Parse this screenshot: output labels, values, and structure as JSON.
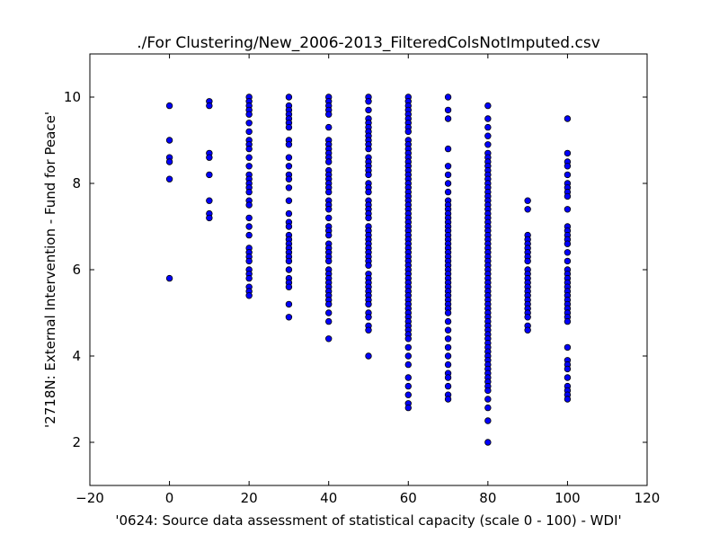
{
  "chart_data": {
    "type": "scatter",
    "title": "./For Clustering/New_2006-2013_FilteredColsNotImputed.csv",
    "xlabel": "'0624: Source data assessment of statistical capacity  (scale 0 - 100) - WDI'",
    "ylabel": "'2718N: External Intervention - Fund for Peace'",
    "xlim": [
      -20,
      120
    ],
    "ylim": [
      1,
      11
    ],
    "xticks": [
      -20,
      0,
      20,
      40,
      60,
      80,
      100,
      120
    ],
    "yticks": [
      2,
      4,
      6,
      8,
      10
    ],
    "grid": false,
    "marker_color": "#0000ff",
    "points_by_x": [
      {
        "x": 0,
        "y": [
          9.8,
          9.0,
          8.6,
          8.5,
          8.1,
          5.8
        ]
      },
      {
        "x": 10,
        "y": [
          9.9,
          9.8,
          8.7,
          8.6,
          8.2,
          7.6,
          7.3,
          7.2
        ]
      },
      {
        "x": 20,
        "y": [
          10.0,
          9.9,
          9.8,
          9.7,
          9.6,
          9.4,
          9.2,
          9.0,
          8.9,
          8.8,
          8.6,
          8.4,
          8.2,
          8.1,
          8.0,
          7.9,
          7.8,
          7.6,
          7.5,
          7.2,
          7.0,
          6.8,
          6.5,
          6.4,
          6.3,
          6.2,
          6.0,
          5.9,
          5.8,
          5.6,
          5.5,
          5.4
        ]
      },
      {
        "x": 30,
        "y": [
          10.0,
          9.8,
          9.7,
          9.6,
          9.5,
          9.4,
          9.3,
          9.0,
          8.9,
          8.6,
          8.4,
          8.2,
          8.1,
          7.9,
          7.6,
          7.3,
          7.1,
          7.0,
          6.8,
          6.7,
          6.6,
          6.5,
          6.4,
          6.3,
          6.2,
          6.0,
          5.8,
          5.7,
          5.6,
          5.2,
          4.9
        ]
      },
      {
        "x": 40,
        "y": [
          10.0,
          9.9,
          9.8,
          9.7,
          9.6,
          9.3,
          9.0,
          8.9,
          8.8,
          8.7,
          8.6,
          8.5,
          8.3,
          8.2,
          8.1,
          8.0,
          7.9,
          7.8,
          7.6,
          7.5,
          7.4,
          7.2,
          7.0,
          6.9,
          6.8,
          6.6,
          6.5,
          6.4,
          6.3,
          6.2,
          6.0,
          5.9,
          5.8,
          5.7,
          5.6,
          5.5,
          5.4,
          5.3,
          5.2,
          5.0,
          4.8,
          4.4
        ]
      },
      {
        "x": 50,
        "y": [
          10.0,
          9.9,
          9.7,
          9.5,
          9.4,
          9.3,
          9.2,
          9.1,
          9.0,
          8.9,
          8.8,
          8.6,
          8.5,
          8.4,
          8.3,
          8.2,
          8.0,
          7.9,
          7.8,
          7.6,
          7.5,
          7.4,
          7.3,
          7.2,
          7.0,
          6.9,
          6.8,
          6.7,
          6.6,
          6.5,
          6.4,
          6.3,
          6.2,
          6.1,
          5.9,
          5.8,
          5.7,
          5.6,
          5.5,
          5.4,
          5.3,
          5.2,
          5.0,
          4.9,
          4.7,
          4.6,
          4.0
        ]
      },
      {
        "x": 60,
        "y": [
          10.0,
          9.9,
          9.8,
          9.7,
          9.6,
          9.5,
          9.4,
          9.3,
          9.2,
          9.0,
          8.9,
          8.8,
          8.7,
          8.6,
          8.5,
          8.4,
          8.3,
          8.2,
          8.1,
          8.0,
          7.9,
          7.8,
          7.7,
          7.6,
          7.5,
          7.4,
          7.3,
          7.2,
          7.1,
          7.0,
          6.9,
          6.8,
          6.7,
          6.6,
          6.5,
          6.4,
          6.3,
          6.2,
          6.1,
          6.0,
          5.9,
          5.8,
          5.7,
          5.6,
          5.5,
          5.4,
          5.3,
          5.2,
          5.1,
          5.0,
          4.9,
          4.8,
          4.7,
          4.6,
          4.5,
          4.4,
          4.2,
          4.0,
          3.8,
          3.5,
          3.3,
          3.1,
          2.9,
          2.8
        ]
      },
      {
        "x": 70,
        "y": [
          10.0,
          9.7,
          9.5,
          8.8,
          8.4,
          8.2,
          8.0,
          7.8,
          7.6,
          7.5,
          7.4,
          7.3,
          7.2,
          7.1,
          7.0,
          6.9,
          6.8,
          6.7,
          6.6,
          6.5,
          6.4,
          6.3,
          6.2,
          6.1,
          6.0,
          5.9,
          5.8,
          5.7,
          5.6,
          5.5,
          5.4,
          5.3,
          5.2,
          5.1,
          5.0,
          4.8,
          4.6,
          4.4,
          4.2,
          4.0,
          3.8,
          3.6,
          3.5,
          3.3,
          3.1,
          3.0
        ]
      },
      {
        "x": 80,
        "y": [
          9.8,
          9.5,
          9.3,
          9.1,
          8.9,
          8.7,
          8.6,
          8.5,
          8.4,
          8.3,
          8.2,
          8.1,
          8.0,
          7.9,
          7.8,
          7.7,
          7.6,
          7.5,
          7.4,
          7.3,
          7.2,
          7.1,
          7.0,
          6.9,
          6.8,
          6.7,
          6.6,
          6.5,
          6.4,
          6.3,
          6.2,
          6.1,
          6.0,
          5.9,
          5.8,
          5.7,
          5.6,
          5.5,
          5.4,
          5.3,
          5.2,
          5.1,
          5.0,
          4.9,
          4.8,
          4.7,
          4.6,
          4.5,
          4.4,
          4.3,
          4.2,
          4.1,
          4.0,
          3.9,
          3.8,
          3.7,
          3.6,
          3.5,
          3.4,
          3.3,
          3.2,
          3.0,
          2.8,
          2.5,
          2.0
        ]
      },
      {
        "x": 90,
        "y": [
          7.6,
          7.4,
          6.8,
          6.7,
          6.6,
          6.5,
          6.4,
          6.3,
          6.2,
          6.0,
          5.9,
          5.8,
          5.7,
          5.6,
          5.5,
          5.4,
          5.3,
          5.2,
          5.1,
          5.0,
          4.9,
          4.7,
          4.6
        ]
      },
      {
        "x": 100,
        "y": [
          9.5,
          8.7,
          8.5,
          8.4,
          8.2,
          8.0,
          7.9,
          7.8,
          7.7,
          7.4,
          7.0,
          6.9,
          6.8,
          6.7,
          6.6,
          6.4,
          6.2,
          6.0,
          5.9,
          5.8,
          5.7,
          5.6,
          5.5,
          5.4,
          5.3,
          5.2,
          5.1,
          5.0,
          4.9,
          4.8,
          4.2,
          3.9,
          3.8,
          3.7,
          3.5,
          3.3,
          3.2,
          3.1,
          3.0
        ]
      }
    ]
  }
}
